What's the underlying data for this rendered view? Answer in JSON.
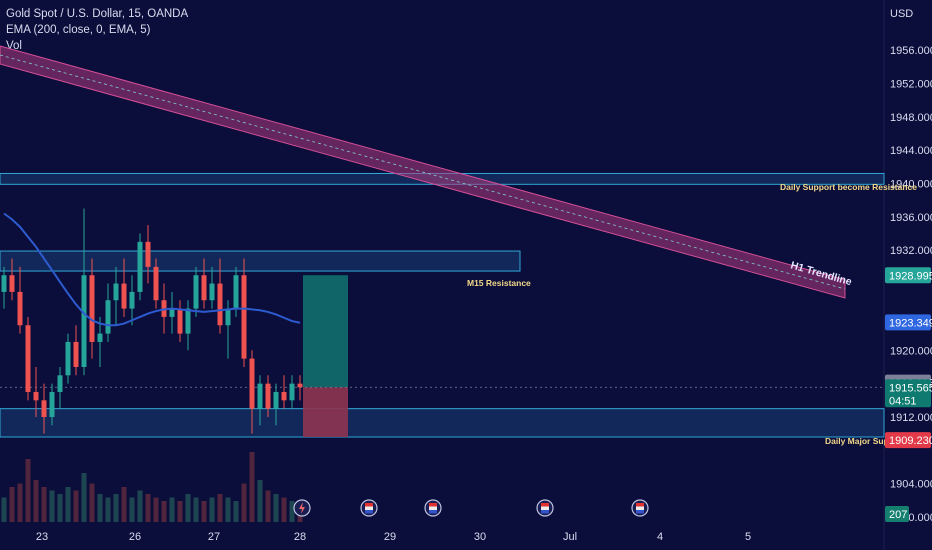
{
  "header": {
    "title": "Gold Spot / U.S. Dollar, 15, OANDA",
    "indicator": "EMA (200, close, 0, EMA, 5)",
    "volume_label": "Vol"
  },
  "colors": {
    "background": "#0b0d3a",
    "trendline_fill": "#b03a7c",
    "zone_fill": "#1b3f74",
    "zone_stroke": "#2fa8d6",
    "ema_line": "#2d5bd0",
    "candle_up": "#26a69a",
    "candle_down": "#ef5350",
    "target_fill": "#0f6f6e",
    "stop_fill": "#8e3450",
    "label_text": "#f3d98a"
  },
  "chart_data": {
    "type": "candlestick",
    "symbol": "Gold Spot / U.S. Dollar",
    "timeframe": "15",
    "axis_unit": "USD",
    "y_ticks": [
      1956.0,
      1952.0,
      1948.0,
      1944.0,
      1940.0,
      1936.0,
      1932.0,
      1920.0,
      1912.0,
      1904.0,
      1900.0
    ],
    "y_tick_labels": [
      "1956.000",
      "1952.000",
      "1948.000",
      "1944.000",
      "1940.000",
      "1936.000",
      "1932.000",
      "1920.000",
      "1912.000",
      "1904.000",
      "1900.000"
    ],
    "x_ticks": [
      {
        "label": "23",
        "idx": 0
      },
      {
        "label": "26",
        "idx": 1
      },
      {
        "label": "27",
        "idx": 2
      },
      {
        "label": "28",
        "idx": 3
      },
      {
        "label": "29",
        "idx": 4
      },
      {
        "label": "30",
        "idx": 5
      },
      {
        "label": "Jul",
        "idx": 6
      },
      {
        "label": "4",
        "idx": 7
      },
      {
        "label": "5",
        "idx": 8
      }
    ],
    "price_badges": [
      {
        "label": "1928.995",
        "price": 1928.995,
        "color": "#26a69a"
      },
      {
        "label": "1923.349",
        "price": 1923.349,
        "color": "#2f67e0"
      },
      {
        "label": "1916.118",
        "price": 1916.118,
        "color": "#7d8098"
      },
      {
        "label": "1915.565",
        "sub": "04:51",
        "price": 1915.565,
        "color": "#0f7a6f"
      },
      {
        "label": "1909.230",
        "price": 1909.23,
        "color": "#e33a4a"
      }
    ],
    "volume_badge": "207",
    "trendline": {
      "label": "H1 Trendline",
      "start": {
        "x": "Jun 22",
        "y": 1957.1
      },
      "end": {
        "x": "Jul 5",
        "y": 1928.0
      },
      "band_width": 1.4
    },
    "zones": [
      {
        "label": "Daily Support become Resistance",
        "top": 1941.2,
        "bottom": 1939.9
      },
      {
        "label": "M15 Resistance",
        "top": 1931.9,
        "bottom": 1929.5
      },
      {
        "label": "Daily Major Support",
        "top": 1913.0,
        "bottom": 1909.6
      }
    ],
    "position": {
      "entry": 1915.565,
      "target": 1929.0,
      "stop": 1909.6
    },
    "ema_200": [
      1936.4,
      1935.7,
      1934.8,
      1933.6,
      1932.4,
      1931.0,
      1929.6,
      1928.2,
      1926.8,
      1925.5,
      1924.4,
      1923.6,
      1923.2,
      1923.0,
      1923.0,
      1923.2,
      1923.6,
      1924.0,
      1924.4,
      1924.7,
      1924.9,
      1925.0,
      1924.9,
      1924.8,
      1924.7,
      1924.6,
      1924.7,
      1924.8,
      1924.9,
      1925.0,
      1925.0,
      1924.9,
      1924.8,
      1924.6,
      1924.3,
      1923.9,
      1923.5,
      1923.3
    ],
    "candles": [
      {
        "o": 1927,
        "h": 1930,
        "l": 1925,
        "c": 1929
      },
      {
        "o": 1929,
        "h": 1931,
        "l": 1926,
        "c": 1927
      },
      {
        "o": 1927,
        "h": 1930,
        "l": 1922,
        "c": 1923
      },
      {
        "o": 1923,
        "h": 1924,
        "l": 1914,
        "c": 1915
      },
      {
        "o": 1915,
        "h": 1918,
        "l": 1912,
        "c": 1914
      },
      {
        "o": 1914,
        "h": 1916,
        "l": 1910,
        "c": 1912
      },
      {
        "o": 1912,
        "h": 1916,
        "l": 1911,
        "c": 1915
      },
      {
        "o": 1915,
        "h": 1918,
        "l": 1913,
        "c": 1917
      },
      {
        "o": 1917,
        "h": 1922,
        "l": 1916,
        "c": 1921
      },
      {
        "o": 1921,
        "h": 1923,
        "l": 1917,
        "c": 1918
      },
      {
        "o": 1918,
        "h": 1937,
        "l": 1917,
        "c": 1929
      },
      {
        "o": 1929,
        "h": 1931,
        "l": 1919,
        "c": 1921
      },
      {
        "o": 1921,
        "h": 1924,
        "l": 1918,
        "c": 1922
      },
      {
        "o": 1922,
        "h": 1928,
        "l": 1921,
        "c": 1926
      },
      {
        "o": 1926,
        "h": 1930,
        "l": 1923,
        "c": 1928
      },
      {
        "o": 1928,
        "h": 1931,
        "l": 1924,
        "c": 1925
      },
      {
        "o": 1925,
        "h": 1929,
        "l": 1923,
        "c": 1927
      },
      {
        "o": 1927,
        "h": 1934,
        "l": 1926,
        "c": 1933
      },
      {
        "o": 1933,
        "h": 1935,
        "l": 1928,
        "c": 1930
      },
      {
        "o": 1930,
        "h": 1931,
        "l": 1925,
        "c": 1926
      },
      {
        "o": 1926,
        "h": 1928,
        "l": 1922,
        "c": 1924
      },
      {
        "o": 1924,
        "h": 1927,
        "l": 1922,
        "c": 1925
      },
      {
        "o": 1925,
        "h": 1926,
        "l": 1921,
        "c": 1922
      },
      {
        "o": 1922,
        "h": 1926,
        "l": 1920,
        "c": 1925
      },
      {
        "o": 1925,
        "h": 1930,
        "l": 1924,
        "c": 1929
      },
      {
        "o": 1929,
        "h": 1931,
        "l": 1925,
        "c": 1926
      },
      {
        "o": 1926,
        "h": 1930,
        "l": 1925,
        "c": 1928
      },
      {
        "o": 1928,
        "h": 1931,
        "l": 1922,
        "c": 1923
      },
      {
        "o": 1923,
        "h": 1926,
        "l": 1919,
        "c": 1925
      },
      {
        "o": 1925,
        "h": 1930,
        "l": 1924,
        "c": 1929
      },
      {
        "o": 1929,
        "h": 1931,
        "l": 1918,
        "c": 1919
      },
      {
        "o": 1919,
        "h": 1920,
        "l": 1910,
        "c": 1913
      },
      {
        "o": 1913,
        "h": 1917,
        "l": 1911,
        "c": 1916
      },
      {
        "o": 1916,
        "h": 1917,
        "l": 1912,
        "c": 1913
      },
      {
        "o": 1913,
        "h": 1916,
        "l": 1911,
        "c": 1915
      },
      {
        "o": 1915,
        "h": 1917,
        "l": 1913,
        "c": 1914
      },
      {
        "o": 1914,
        "h": 1917,
        "l": 1913,
        "c": 1916
      },
      {
        "o": 1916,
        "h": 1917,
        "l": 1914,
        "c": 1915.565
      }
    ],
    "volume": [
      0.35,
      0.5,
      0.55,
      0.9,
      0.6,
      0.5,
      0.45,
      0.4,
      0.5,
      0.45,
      0.7,
      0.55,
      0.4,
      0.35,
      0.4,
      0.5,
      0.35,
      0.45,
      0.4,
      0.35,
      0.3,
      0.35,
      0.3,
      0.4,
      0.35,
      0.3,
      0.35,
      0.4,
      0.35,
      0.3,
      0.55,
      1.0,
      0.6,
      0.45,
      0.4,
      0.35,
      0.3,
      0.25
    ]
  }
}
